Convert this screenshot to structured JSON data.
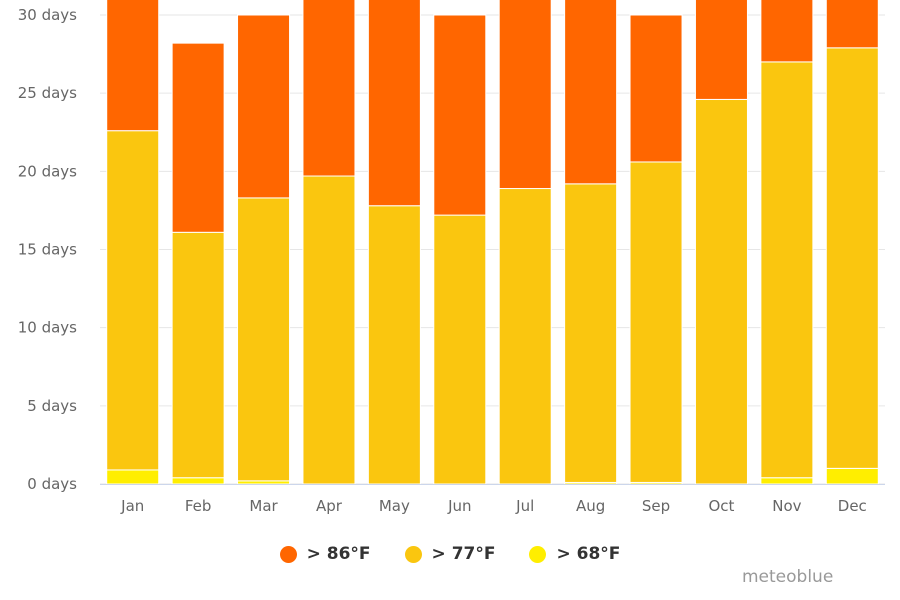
{
  "chart_data": {
    "type": "bar",
    "stacked": true,
    "title": "",
    "xlabel": "",
    "ylabel": "",
    "categories": [
      "Jan",
      "Feb",
      "Mar",
      "Apr",
      "May",
      "Jun",
      "Jul",
      "Aug",
      "Sep",
      "Oct",
      "Nov",
      "Dec"
    ],
    "ylim": [
      0,
      30
    ],
    "yticks": [
      0,
      5,
      10,
      15,
      20,
      25,
      30
    ],
    "ytick_labels": [
      "0 days",
      "5 days",
      "10 days",
      "15 days",
      "20 days",
      "25 days",
      "30 days"
    ],
    "grid": true,
    "legend_position": "bottom",
    "series": [
      {
        "name": "> 68°F",
        "color": "#ffee00",
        "values": [
          0.9,
          0.4,
          0.2,
          0,
          0,
          0,
          0,
          0.1,
          0.1,
          0,
          0.4,
          1.0
        ]
      },
      {
        "name": "> 77°F",
        "color": "#fac60f",
        "values": [
          21.7,
          15.7,
          18.1,
          19.7,
          17.8,
          17.2,
          18.9,
          19.1,
          20.5,
          24.6,
          26.6,
          26.9
        ]
      },
      {
        "name": "> 86°F",
        "color": "#ff6600",
        "values": [
          8.4,
          12.1,
          11.7,
          11.3,
          13.2,
          12.8,
          12.1,
          11.8,
          9.4,
          6.4,
          4.0,
          3.1
        ]
      }
    ]
  },
  "legend": [
    {
      "label": "> 86°F",
      "color": "#ff6600"
    },
    {
      "label": "> 77°F",
      "color": "#fac60f"
    },
    {
      "label": "> 68°F",
      "color": "#ffee00"
    }
  ],
  "credit": "meteoblue"
}
